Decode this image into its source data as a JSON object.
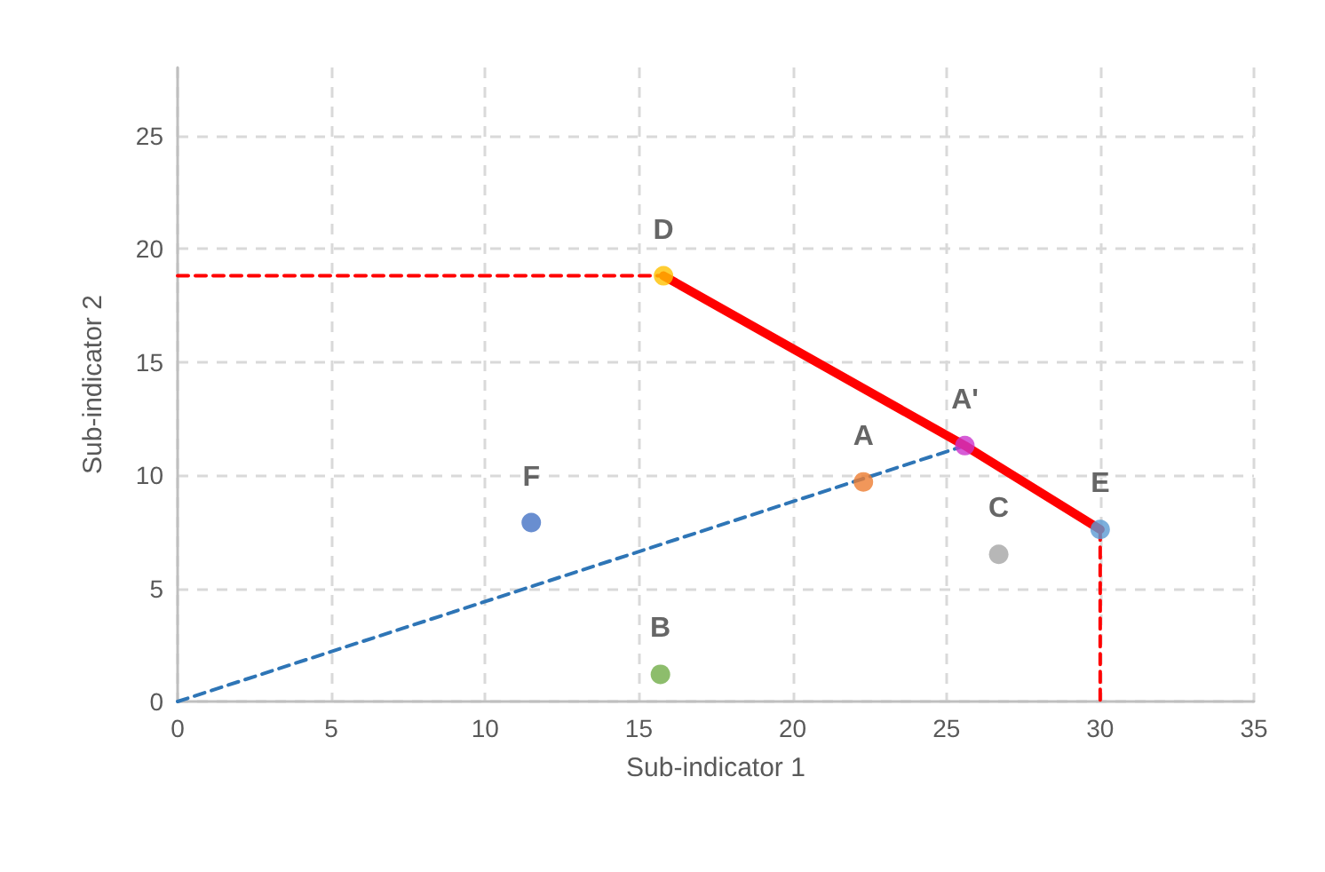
{
  "chart_data": {
    "type": "scatter",
    "xlabel": "Sub-indicator 1",
    "ylabel": "Sub-indicator 2",
    "xlim": [
      0,
      35
    ],
    "ylim": [
      0,
      28
    ],
    "xticks": [
      0,
      5,
      10,
      15,
      20,
      25,
      30,
      35
    ],
    "yticks": [
      0,
      5,
      10,
      15,
      20,
      25
    ],
    "grid": true,
    "legend": false,
    "marker": "circle",
    "series": [
      {
        "type": "line",
        "x": [
          0,
          15.8
        ],
        "values": [
          18.8,
          18.8
        ],
        "color": "#ff0000",
        "line_style": "dashed",
        "marker": "none"
      },
      {
        "type": "line",
        "x": [
          30,
          30
        ],
        "values": [
          7.6,
          0
        ],
        "color": "#ff0000",
        "line_style": "dashed",
        "marker": "none"
      },
      {
        "type": "line",
        "x": [
          0,
          25.6
        ],
        "values": [
          0,
          11.3
        ],
        "color": "#2e75b6",
        "line_style": "dashed",
        "marker": "none"
      },
      {
        "type": "line",
        "x": [
          15.8,
          25.6,
          30
        ],
        "values": [
          18.8,
          11.3,
          7.6
        ],
        "color": "#ff0000",
        "line_style": "solid",
        "marker": "none"
      },
      {
        "name": "D",
        "x": [
          15.8
        ],
        "values": [
          18.8
        ],
        "color": "#ffc000"
      },
      {
        "name": "A'",
        "x": [
          25.6
        ],
        "values": [
          11.3
        ],
        "color": "#cc33cc"
      },
      {
        "name": "E",
        "x": [
          30
        ],
        "values": [
          7.6
        ],
        "color": "#5b9bd5"
      },
      {
        "name": "A",
        "x": [
          22.3
        ],
        "values": [
          9.7
        ],
        "color": "#ed7d31"
      },
      {
        "name": "C",
        "x": [
          26.7
        ],
        "values": [
          6.5
        ],
        "color": "#a5a5a5"
      },
      {
        "name": "F",
        "x": [
          11.5
        ],
        "values": [
          7.9
        ],
        "color": "#4472c4"
      },
      {
        "name": "B",
        "x": [
          15.7
        ],
        "values": [
          1.2
        ],
        "color": "#70ad47"
      }
    ]
  }
}
